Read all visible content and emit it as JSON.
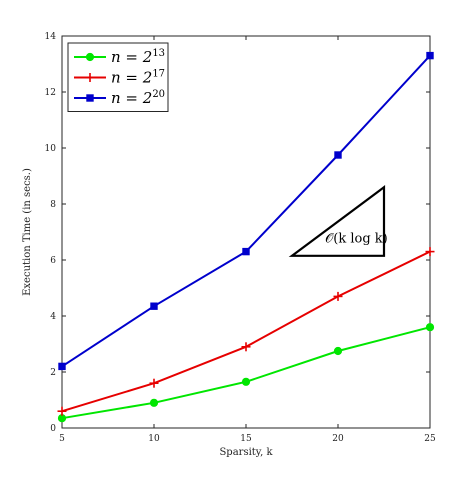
{
  "chart_data": {
    "type": "line",
    "xlabel": "Sparsity, k",
    "ylabel": "Execution Time (in secs.)",
    "xlim": [
      5,
      25
    ],
    "ylim": [
      0,
      14
    ],
    "xticks": [
      5,
      10,
      15,
      20,
      25
    ],
    "yticks": [
      0,
      2,
      4,
      6,
      8,
      10,
      12,
      14
    ],
    "grid": false,
    "legend_position": "top-left",
    "series": [
      {
        "name": "n = 2^13",
        "color": "#00e600",
        "marker": "circle",
        "x": [
          5,
          10,
          15,
          20,
          25
        ],
        "values": [
          0.35,
          0.9,
          1.65,
          2.75,
          3.6
        ]
      },
      {
        "name": "n = 2^17",
        "color": "#e60000",
        "marker": "plus",
        "x": [
          5,
          10,
          15,
          20,
          25
        ],
        "values": [
          0.6,
          1.6,
          2.9,
          4.7,
          6.3
        ]
      },
      {
        "name": "n = 2^20",
        "color": "#0000cc",
        "marker": "square",
        "x": [
          5,
          10,
          15,
          20,
          25
        ],
        "values": [
          2.2,
          4.35,
          6.3,
          9.75,
          13.3
        ]
      }
    ],
    "legend": [
      {
        "base": "n = 2",
        "exp": "13"
      },
      {
        "base": "n = 2",
        "exp": "17"
      },
      {
        "base": "n = 2",
        "exp": "20"
      }
    ],
    "annotation": {
      "text": "𝒪(k log k)",
      "triangle": {
        "x": [
          17.5,
          22.5,
          22.5
        ],
        "y": [
          6.15,
          6.15,
          8.6
        ]
      }
    }
  }
}
